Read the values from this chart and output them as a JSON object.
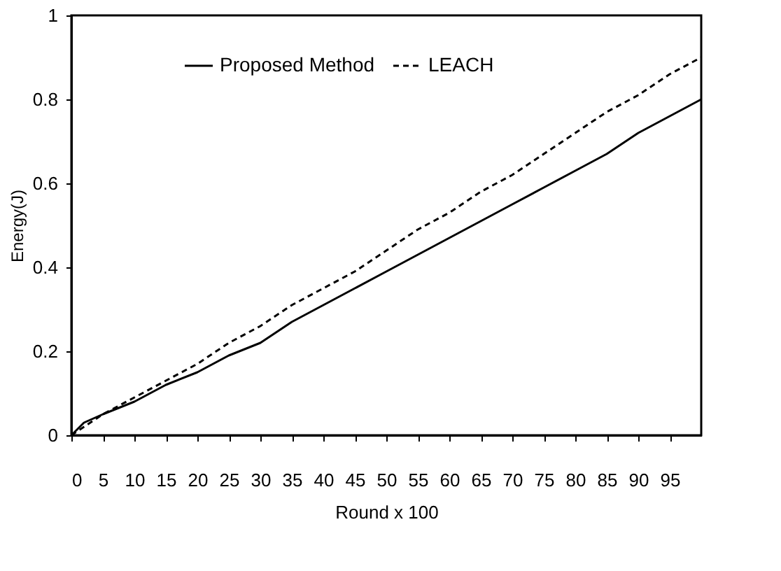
{
  "chart_data": {
    "type": "line",
    "xlabel": "Round x 100",
    "ylabel": "Energy(J)",
    "xlim": [
      0,
      100
    ],
    "xticks": [
      0,
      5,
      10,
      15,
      20,
      25,
      30,
      35,
      40,
      45,
      50,
      55,
      60,
      65,
      70,
      75,
      80,
      85,
      90,
      95
    ],
    "ylim": [
      0,
      1
    ],
    "yticks": [
      0,
      0.2,
      0.4,
      0.6,
      0.8,
      {
        "value": 1,
        "label": "1"
      }
    ],
    "grid": false,
    "legend": "top",
    "marker": "none",
    "series": [
      {
        "name": "Proposed Method",
        "color": "#000000",
        "line_style": "solid",
        "x": [
          0,
          2,
          5,
          10,
          15,
          20,
          25,
          30,
          35,
          40,
          45,
          50,
          55,
          60,
          65,
          70,
          75,
          80,
          85,
          90,
          95,
          100
        ],
        "values": [
          0,
          0.03,
          0.05,
          0.08,
          0.12,
          0.15,
          0.19,
          0.22,
          0.27,
          0.31,
          0.35,
          0.39,
          0.43,
          0.47,
          0.51,
          0.55,
          0.59,
          0.63,
          0.67,
          0.72,
          0.76,
          0.8
        ]
      },
      {
        "name": "LEACH",
        "color": "#000000",
        "line_style": "dashed",
        "x": [
          0,
          5,
          10,
          15,
          20,
          25,
          30,
          35,
          40,
          45,
          50,
          55,
          60,
          65,
          70,
          75,
          80,
          85,
          90,
          95,
          100
        ],
        "values": [
          0,
          0.05,
          0.09,
          0.13,
          0.17,
          0.22,
          0.26,
          0.31,
          0.35,
          0.39,
          0.44,
          0.49,
          0.53,
          0.58,
          0.62,
          0.67,
          0.72,
          0.77,
          0.81,
          0.86,
          0.9
        ]
      }
    ]
  }
}
